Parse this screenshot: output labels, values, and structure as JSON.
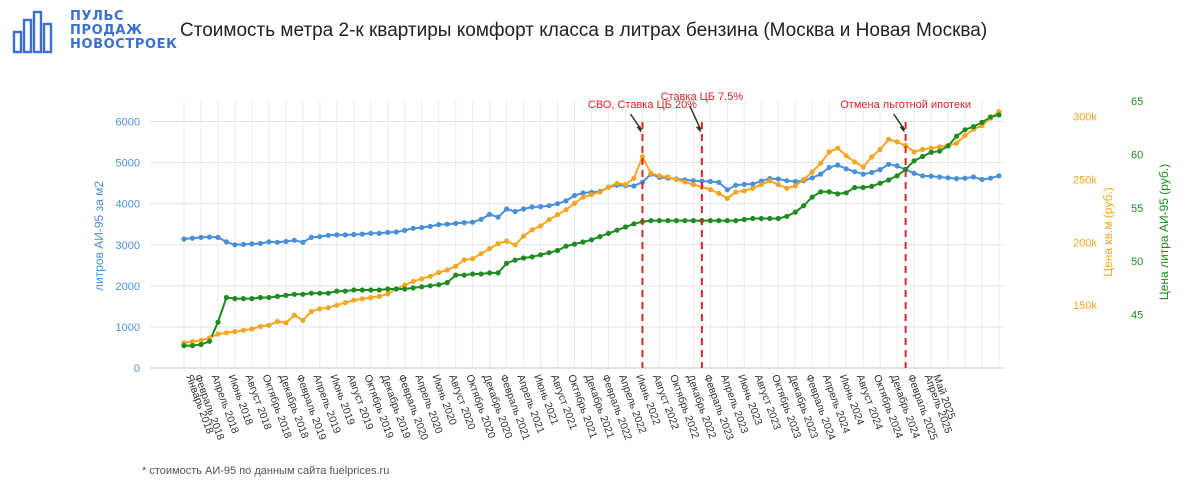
{
  "logo": {
    "line1": "ПУЛЬС",
    "line2": "ПРОДАЖ",
    "line3": "НОВОСТРОЕК",
    "icon": "building-bars-icon"
  },
  "footnote": "* стоимость АИ-95 по данным сайта fuelprices.ru",
  "colors": {
    "blue": "#4a90d9",
    "orange": "#f5a623",
    "green": "#1e8c1e",
    "event": "#e02424",
    "brand": "#3b6fd0"
  },
  "chart_data": {
    "type": "line",
    "title": "Стоимость метра 2-к квартиры комфорт класса в литрах бензина (Москва и Новая Москва)",
    "x_label_months": [
      "Январь 2018",
      "Февраль 2018",
      "Апрель 2018",
      "Июнь 2018",
      "Август 2018",
      "Октябрь 2018",
      "Декабрь 2018",
      "Февраль 2019",
      "Апрель 2019",
      "Июнь 2019",
      "Август 2019",
      "Октябрь 2019",
      "Декабрь 2019",
      "Февраль 2020",
      "Апрель 2020",
      "Июнь 2020",
      "Август 2020",
      "Октябрь 2020",
      "Декабрь 2020",
      "Февраль 2021",
      "Апрель 2021",
      "Июнь 2021",
      "Август 2021",
      "Октябрь 2021",
      "Декабрь 2021",
      "Февраль 2022",
      "Апрель 2022",
      "Июнь 2022",
      "Август 2022",
      "Октябрь 2022",
      "Декабрь 2022",
      "Февраль 2023",
      "Апрель 2023",
      "Июнь 2023",
      "Август 2023",
      "Октябрь 2023",
      "Декабрь 2023",
      "Февраль 2024",
      "Апрель 2024",
      "Июнь 2024",
      "Август 2024",
      "Октябрь 2024",
      "Декабрь 2024",
      "Февраль 2025",
      "Апрель 2025",
      "Май 2025"
    ],
    "y_left": {
      "label": "литров АИ-95 за м2",
      "range": [
        0,
        6500
      ],
      "ticks": [
        "0",
        "1000",
        "2000",
        "3000",
        "4000",
        "5000",
        "6000"
      ]
    },
    "y_right1": {
      "label": "Цена кв.м (руб.)",
      "range": [
        100000,
        312500
      ],
      "ticks": [
        "150k",
        "200k",
        "250k",
        "300k"
      ]
    },
    "y_right2": {
      "label": "Цена литра АИ-95 (руб.)",
      "range": [
        40,
        65
      ],
      "ticks": [
        "45",
        "50",
        "55",
        "60",
        "65"
      ]
    },
    "series": [
      {
        "axis": "left",
        "color": "#4a90d9",
        "values": [
          3140,
          3160,
          3180,
          3190,
          3180,
          3070,
          3000,
          3010,
          3020,
          3030,
          3070,
          3060,
          3080,
          3110,
          3060,
          3180,
          3200,
          3230,
          3240,
          3240,
          3250,
          3260,
          3280,
          3280,
          3300,
          3310,
          3350,
          3400,
          3420,
          3450,
          3490,
          3500,
          3520,
          3540,
          3550,
          3620,
          3740,
          3670,
          3870,
          3810,
          3870,
          3920,
          3930,
          3950,
          4000,
          4070,
          4200,
          4260,
          4280,
          4300,
          4400,
          4450,
          4440,
          4430,
          4520,
          4720,
          4640,
          4620,
          4600,
          4580,
          4560,
          4550,
          4540,
          4520,
          4340,
          4450,
          4470,
          4480,
          4550,
          4610,
          4600,
          4560,
          4540,
          4560,
          4630,
          4720,
          4880,
          4940,
          4850,
          4780,
          4720,
          4760,
          4830,
          4960,
          4920,
          4830,
          4740,
          4680,
          4670,
          4650,
          4630,
          4610,
          4620,
          4650,
          4590,
          4620,
          4680
        ]
      },
      {
        "axis": "right1",
        "color": "#f5a623",
        "values": [
          120000,
          121000,
          122000,
          124000,
          127000,
          128000,
          129000,
          130000,
          131000,
          133000,
          134000,
          137000,
          136000,
          142000,
          138000,
          145000,
          147000,
          148000,
          150000,
          152000,
          154000,
          155000,
          156000,
          157000,
          159000,
          163000,
          166000,
          169000,
          171000,
          173000,
          176000,
          178000,
          181000,
          186000,
          187000,
          191000,
          195000,
          199000,
          201000,
          198000,
          205000,
          210000,
          213000,
          218000,
          222000,
          226000,
          231000,
          236000,
          238000,
          240000,
          244000,
          247000,
          246000,
          251000,
          268000,
          255000,
          253000,
          252000,
          250000,
          248000,
          246000,
          244000,
          242000,
          239000,
          235000,
          240000,
          241000,
          243000,
          246000,
          249000,
          246000,
          243000,
          245000,
          250000,
          256000,
          263000,
          272000,
          275000,
          269000,
          264000,
          260000,
          268000,
          274000,
          282000,
          280000,
          277000,
          272000,
          274000,
          275000,
          276000,
          277000,
          279000,
          285000,
          290000,
          293000,
          299000,
          304000
        ]
      },
      {
        "axis": "right2",
        "color": "#1e8c1e",
        "values": [
          42.1,
          42.1,
          42.2,
          42.5,
          44.3,
          46.6,
          46.5,
          46.5,
          46.5,
          46.6,
          46.6,
          46.7,
          46.8,
          46.9,
          46.9,
          47.0,
          47.0,
          47.0,
          47.2,
          47.2,
          47.3,
          47.3,
          47.3,
          47.3,
          47.4,
          47.4,
          47.4,
          47.5,
          47.6,
          47.7,
          47.8,
          48.0,
          48.7,
          48.7,
          48.8,
          48.8,
          48.9,
          48.9,
          49.8,
          50.1,
          50.3,
          50.4,
          50.6,
          50.8,
          51.0,
          51.4,
          51.6,
          51.8,
          52.0,
          52.3,
          52.6,
          52.9,
          53.2,
          53.5,
          53.7,
          53.8,
          53.8,
          53.8,
          53.8,
          53.8,
          53.8,
          53.8,
          53.8,
          53.8,
          53.8,
          53.8,
          53.9,
          54.0,
          54.0,
          54.0,
          54.0,
          54.2,
          54.6,
          55.2,
          56.0,
          56.5,
          56.5,
          56.3,
          56.4,
          56.9,
          56.9,
          57.0,
          57.3,
          57.6,
          58.0,
          58.6,
          59.4,
          59.8,
          60.2,
          60.3,
          60.8,
          61.7,
          62.3,
          62.6,
          63.0,
          63.5,
          63.7
        ]
      }
    ],
    "events": [
      {
        "index": 54,
        "label": "СВО, Ставка ЦБ 20%"
      },
      {
        "index": 61,
        "label": "Ставка ЦБ 7.5%"
      },
      {
        "index": 85,
        "label": "Отмена льготной ипотеки"
      }
    ]
  }
}
